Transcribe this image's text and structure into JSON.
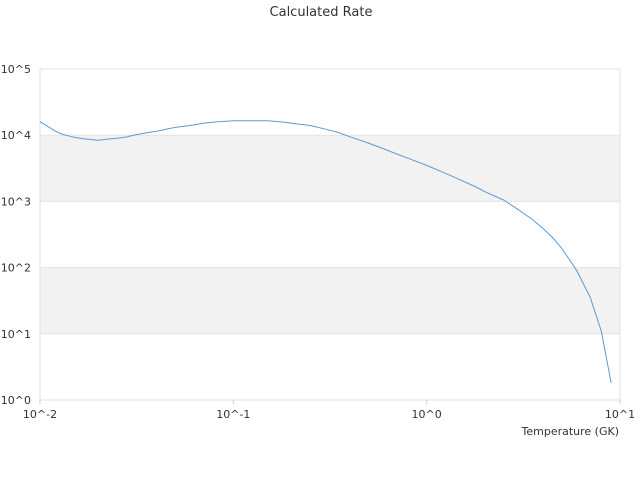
{
  "chart_data": {
    "type": "line",
    "title": "Calculated Rate",
    "xlabel": "Temperature (GK)",
    "ylabel": "",
    "x_scale": "log",
    "y_scale": "log",
    "xlim": [
      0.01,
      10
    ],
    "ylim": [
      1,
      100000
    ],
    "x_tick_labels": [
      "10^-2",
      "10^-1",
      "10^0",
      "10^1"
    ],
    "y_tick_labels": [
      "10^0",
      "10^1",
      "10^2",
      "10^3",
      "10^4",
      "10^5"
    ],
    "grid": "alternating horizontal bands",
    "legend": "none",
    "line_color": "#5b9bd5",
    "band_color": "#f2f2f2",
    "series": [
      {
        "x": [
          0.01,
          0.011,
          0.012,
          0.013,
          0.015,
          0.017,
          0.02,
          0.022,
          0.025,
          0.028,
          0.03,
          0.035,
          0.04,
          0.05,
          0.06,
          0.07,
          0.08,
          0.1,
          0.12,
          0.15,
          0.18,
          0.2,
          0.25,
          0.3,
          0.35,
          0.4,
          0.5,
          0.6,
          0.7,
          0.8,
          1.0,
          1.2,
          1.5,
          1.8,
          2.0,
          2.5,
          3.0,
          3.5,
          4.0,
          4.5,
          5.0,
          5.5,
          6.0,
          7.0,
          8.0,
          9.0
        ],
        "y": [
          16000,
          13500,
          11500,
          10400,
          9300,
          8800,
          8400,
          8700,
          9000,
          9400,
          9900,
          10800,
          11500,
          13100,
          14000,
          15200,
          15800,
          16500,
          16500,
          16500,
          15800,
          15200,
          14000,
          12300,
          11000,
          9500,
          7600,
          6200,
          5200,
          4500,
          3500,
          2800,
          2100,
          1650,
          1400,
          1050,
          740,
          540,
          390,
          280,
          195,
          130,
          88,
          36,
          11,
          1.8
        ]
      }
    ]
  }
}
